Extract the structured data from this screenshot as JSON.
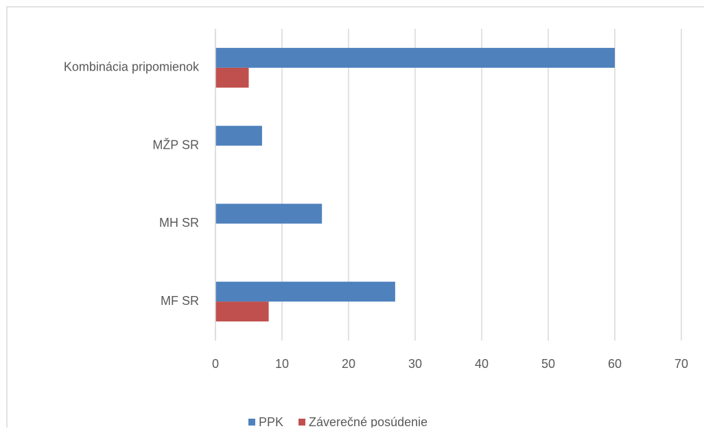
{
  "chart_data": {
    "type": "bar",
    "orientation": "horizontal",
    "categories": [
      "Kombinácia pripomienok",
      "MŽP SR",
      "MH SR",
      "MF SR"
    ],
    "series": [
      {
        "name": "PPK",
        "color": "#4f81bd",
        "values": [
          60,
          7,
          16,
          27
        ]
      },
      {
        "name": "Záverečné posúdenie",
        "color": "#c0504d",
        "values": [
          5,
          0,
          0,
          8
        ]
      }
    ],
    "xlim": [
      0,
      70
    ],
    "xticks": [
      0,
      10,
      20,
      30,
      40,
      50,
      60,
      70
    ],
    "grid": true,
    "legend": "bottom"
  }
}
